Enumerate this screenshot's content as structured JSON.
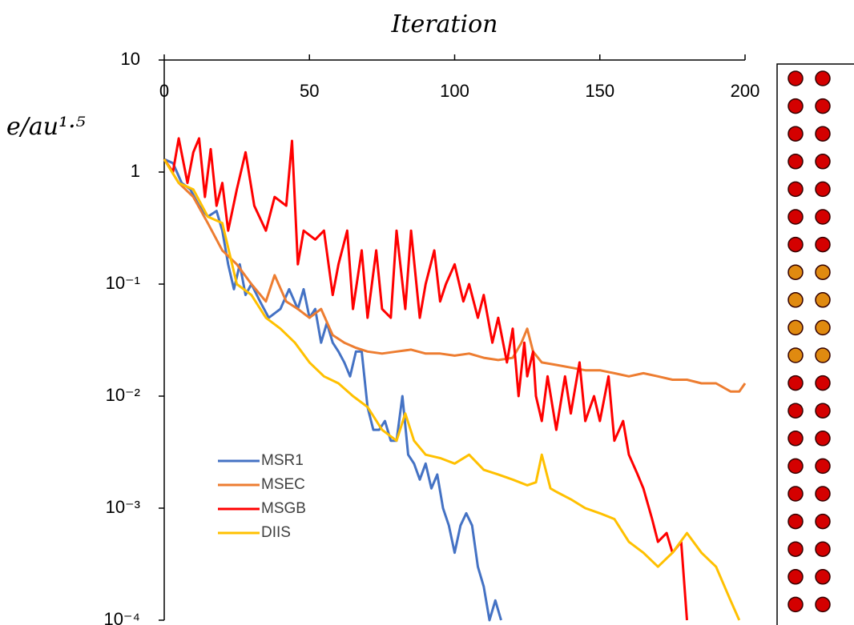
{
  "chart_data": {
    "type": "line",
    "x_label": "Iteration",
    "y_label": "e/au¹·⁵",
    "log_y": true,
    "x_axis_position": "top",
    "legend": "lower left",
    "xlim": [
      0,
      200
    ],
    "xticks": [
      0,
      50,
      100,
      150,
      200
    ],
    "ylim": [
      0.0001,
      10
    ],
    "yticks": [
      {
        "value": 0.0001,
        "label": "10⁻⁴"
      },
      {
        "value": 0.001,
        "label": "10⁻³"
      },
      {
        "value": 0.01,
        "label": "10⁻²"
      },
      {
        "value": 0.1,
        "label": "10⁻¹"
      },
      1,
      10
    ],
    "series": [
      {
        "name": "MSR1",
        "color": "#4472c4",
        "x": [
          0,
          3,
          6,
          9,
          12,
          15,
          18,
          20,
          22,
          24,
          26,
          28,
          30,
          33,
          36,
          40,
          43,
          46,
          48,
          50,
          52,
          54,
          56,
          58,
          60,
          62,
          64,
          66,
          68,
          70,
          72,
          74,
          76,
          78,
          80,
          82,
          84,
          86,
          88,
          90,
          92,
          94,
          96,
          98,
          100,
          102,
          104,
          106,
          108,
          110,
          112,
          114,
          116
        ],
        "values": [
          1.3,
          1.2,
          0.8,
          0.7,
          0.5,
          0.4,
          0.45,
          0.3,
          0.15,
          0.09,
          0.15,
          0.08,
          0.1,
          0.07,
          0.05,
          0.06,
          0.09,
          0.06,
          0.09,
          0.05,
          0.06,
          0.03,
          0.045,
          0.03,
          0.025,
          0.02,
          0.015,
          0.025,
          0.025,
          0.008,
          0.005,
          0.005,
          0.006,
          0.004,
          0.004,
          0.01,
          0.003,
          0.0025,
          0.0018,
          0.0025,
          0.0015,
          0.002,
          0.001,
          0.0007,
          0.0004,
          0.0007,
          0.0009,
          0.0007,
          0.0003,
          0.0002,
          0.0001,
          0.00015,
          0.0001
        ]
      },
      {
        "name": "MSEC",
        "color": "#ed7d31",
        "x": [
          0,
          5,
          10,
          15,
          20,
          25,
          30,
          35,
          38,
          42,
          46,
          50,
          54,
          58,
          62,
          66,
          70,
          75,
          80,
          85,
          90,
          95,
          100,
          105,
          110,
          115,
          120,
          123,
          125,
          127,
          130,
          135,
          140,
          145,
          150,
          155,
          160,
          165,
          170,
          175,
          180,
          185,
          190,
          195,
          198,
          200
        ],
        "values": [
          1.3,
          0.8,
          0.6,
          0.35,
          0.2,
          0.15,
          0.1,
          0.07,
          0.12,
          0.07,
          0.06,
          0.05,
          0.06,
          0.035,
          0.03,
          0.027,
          0.025,
          0.024,
          0.025,
          0.026,
          0.024,
          0.024,
          0.023,
          0.024,
          0.022,
          0.021,
          0.022,
          0.03,
          0.04,
          0.025,
          0.02,
          0.019,
          0.018,
          0.017,
          0.017,
          0.016,
          0.015,
          0.016,
          0.015,
          0.014,
          0.014,
          0.013,
          0.013,
          0.011,
          0.011,
          0.013
        ]
      },
      {
        "name": "MSGB",
        "color": "#ff0000",
        "x": [
          0,
          3,
          5,
          8,
          10,
          12,
          14,
          16,
          18,
          20,
          22,
          25,
          28,
          31,
          35,
          38,
          42,
          44,
          46,
          48,
          52,
          55,
          58,
          60,
          63,
          65,
          68,
          70,
          73,
          75,
          78,
          80,
          83,
          85,
          88,
          90,
          93,
          95,
          97,
          100,
          103,
          105,
          108,
          110,
          113,
          115,
          118,
          120,
          122,
          124,
          125,
          127,
          128,
          130,
          132,
          135,
          138,
          140,
          143,
          145,
          148,
          150,
          153,
          155,
          158,
          160,
          163,
          165,
          168,
          170,
          173,
          175,
          178,
          180
        ],
        "values": [
          1.3,
          1.0,
          2.0,
          0.8,
          1.5,
          2.0,
          0.6,
          1.6,
          0.5,
          0.8,
          0.3,
          0.7,
          1.5,
          0.5,
          0.3,
          0.6,
          0.5,
          1.9,
          0.15,
          0.3,
          0.25,
          0.3,
          0.08,
          0.15,
          0.3,
          0.06,
          0.2,
          0.05,
          0.2,
          0.06,
          0.05,
          0.3,
          0.06,
          0.3,
          0.05,
          0.1,
          0.2,
          0.07,
          0.1,
          0.15,
          0.07,
          0.1,
          0.05,
          0.08,
          0.03,
          0.05,
          0.02,
          0.04,
          0.01,
          0.03,
          0.015,
          0.025,
          0.01,
          0.006,
          0.015,
          0.005,
          0.015,
          0.007,
          0.02,
          0.006,
          0.01,
          0.006,
          0.015,
          0.004,
          0.006,
          0.003,
          0.002,
          0.0015,
          0.0008,
          0.0005,
          0.0006,
          0.0004,
          0.0005,
          0.0001
        ]
      },
      {
        "name": "DIIS",
        "color": "#ffc000",
        "x": [
          0,
          5,
          10,
          15,
          20,
          25,
          30,
          35,
          40,
          45,
          50,
          55,
          60,
          65,
          70,
          75,
          80,
          83,
          86,
          90,
          95,
          100,
          105,
          110,
          115,
          120,
          125,
          128,
          130,
          133,
          135,
          140,
          145,
          150,
          155,
          160,
          165,
          170,
          175,
          180,
          185,
          190,
          195,
          198
        ],
        "values": [
          1.3,
          0.8,
          0.7,
          0.4,
          0.35,
          0.1,
          0.08,
          0.05,
          0.04,
          0.03,
          0.02,
          0.015,
          0.013,
          0.01,
          0.008,
          0.005,
          0.004,
          0.007,
          0.004,
          0.003,
          0.0028,
          0.0025,
          0.003,
          0.0022,
          0.002,
          0.0018,
          0.0016,
          0.0017,
          0.003,
          0.0015,
          0.0014,
          0.0012,
          0.001,
          0.0009,
          0.0008,
          0.0005,
          0.0004,
          0.0003,
          0.0004,
          0.0006,
          0.0004,
          0.0003,
          0.00015,
          0.0001
        ]
      }
    ]
  }
}
